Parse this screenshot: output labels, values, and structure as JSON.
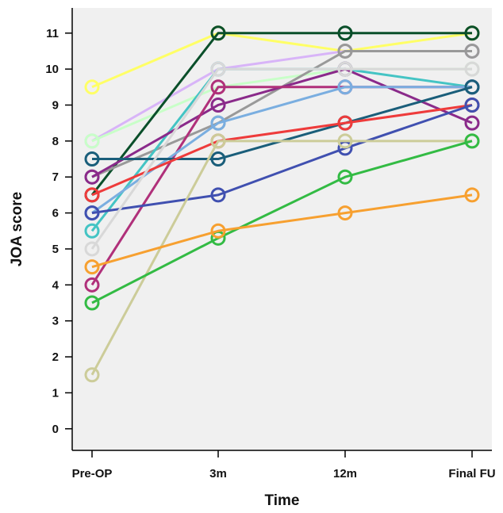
{
  "chart_data": {
    "type": "line",
    "xlabel": "Time",
    "ylabel": "JOA score",
    "categories": [
      "Pre-OP",
      "3m",
      "12m",
      "Final FU"
    ],
    "ylim": [
      -0.6,
      11.7
    ],
    "yticks": [
      0,
      1,
      2,
      3,
      4,
      5,
      6,
      7,
      8,
      9,
      10,
      11
    ],
    "grid": false,
    "marker": "open-circle",
    "background_color": "#f0f0f0",
    "series": [
      {
        "color": "#ffff66",
        "values": [
          9.5,
          11,
          10.5,
          11
        ]
      },
      {
        "color": "#d8b4f8",
        "values": [
          8,
          10,
          10.5,
          10.5
        ]
      },
      {
        "color": "#c8ffc8",
        "values": [
          8,
          9.5,
          10,
          10
        ]
      },
      {
        "color": "#0a4f2a",
        "values": [
          6.5,
          11,
          11,
          11
        ]
      },
      {
        "color": "#999999",
        "values": [
          7,
          8.5,
          10.5,
          10.5
        ]
      },
      {
        "color": "#44c4c4",
        "values": [
          5.5,
          10,
          10,
          9.5
        ]
      },
      {
        "color": "#8a2a8a",
        "values": [
          7,
          9,
          10,
          8.5
        ]
      },
      {
        "color": "#b0307a",
        "values": [
          4,
          9.5,
          9.5,
          9.5
        ]
      },
      {
        "color": "#7aaee0",
        "values": [
          6,
          8.5,
          9.5,
          9.5
        ]
      },
      {
        "color": "#1a5e7a",
        "values": [
          7.5,
          7.5,
          8.5,
          9.5
        ]
      },
      {
        "color": "#ee3b3b",
        "values": [
          6.5,
          8,
          8.5,
          9
        ]
      },
      {
        "color": "#4050b0",
        "values": [
          6,
          6.5,
          7.8,
          9
        ]
      },
      {
        "color": "#cccc99",
        "values": [
          1.5,
          8,
          8,
          8
        ]
      },
      {
        "color": "#d8d8d8",
        "values": [
          5,
          10,
          10,
          10
        ]
      },
      {
        "color": "#33bb44",
        "values": [
          3.5,
          5.3,
          7,
          8
        ]
      },
      {
        "color": "#f7a030",
        "values": [
          4.5,
          5.5,
          6,
          6.5
        ]
      }
    ]
  }
}
